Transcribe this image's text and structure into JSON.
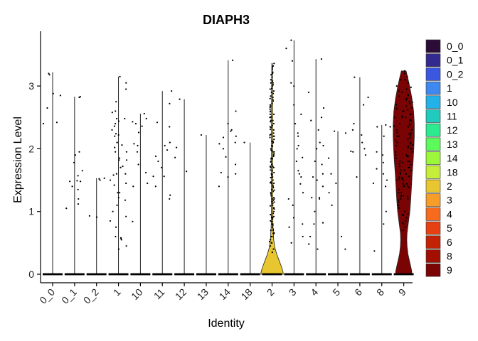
{
  "chart_data": {
    "type": "violin",
    "title": "DIAPH3",
    "xlabel": "Identity",
    "ylabel": "Expression Level",
    "ylim": [
      -0.15,
      3.8
    ],
    "yticks": [
      0,
      1,
      2,
      3
    ],
    "categories": [
      "0_0",
      "0_1",
      "0_2",
      "1",
      "10",
      "11",
      "12",
      "13",
      "14",
      "18",
      "2",
      "3",
      "4",
      "5",
      "6",
      "8",
      "9"
    ],
    "colors": [
      "#2A0C36",
      "#33298F",
      "#3B57E0",
      "#3F88F0",
      "#22B1E8",
      "#20CBBE",
      "#2CEB8E",
      "#5DFA5C",
      "#9CF73A",
      "#C6ED3A",
      "#E8C62F",
      "#F89D2A",
      "#F86B1E",
      "#E64113",
      "#C42205",
      "#A10F01",
      "#7A0403"
    ],
    "max_values": [
      3.22,
      2.83,
      1.53,
      3.15,
      2.56,
      2.92,
      2.79,
      2.22,
      3.41,
      2.1,
      3.36,
      3.73,
      3.43,
      2.28,
      3.14,
      2.38,
      3.24
    ],
    "nonzero_points": [
      [
        2.4,
        2.85,
        3.2,
        2.65,
        2.42,
        2.88,
        3.18
      ],
      [
        2.82,
        1.95,
        1.9,
        1.57,
        1.49,
        1.48,
        1.48,
        1.4,
        1.2,
        1.12,
        1.05,
        1.35,
        1.78,
        1.65,
        2.83
      ],
      [
        0.93,
        0.91,
        1.53,
        1.5,
        1.52
      ],
      [
        3.15,
        3.05,
        2.95,
        2.75,
        2.6,
        2.48,
        2.4,
        2.3,
        2.2,
        2.1,
        2.02,
        1.95,
        1.85,
        1.72,
        1.6,
        1.5,
        1.42,
        1.3,
        1.22,
        1.1,
        1.0,
        0.92,
        0.85,
        0.75,
        0.6,
        0.55,
        0.45,
        0.4,
        2.58,
        2.48,
        2.36,
        2.24,
        2.1,
        1.95,
        1.82,
        1.7,
        1.58,
        1.45,
        1.3,
        1.18,
        0.58,
        0.57,
        2.44,
        2.22,
        2.06,
        1.82,
        1.6
      ],
      [
        2.56,
        2.4,
        2.36,
        2.05,
        1.95,
        1.75,
        1.62,
        1.45,
        1.4,
        2.48,
        2.43,
        2.26,
        2.08,
        0.84
      ],
      [
        2.92,
        2.42,
        2.05,
        1.88,
        1.7,
        1.56,
        1.4,
        1.26,
        1.2,
        2.72,
        2.35,
        2.1,
        1.98,
        1.8,
        1.56
      ],
      [
        2.79,
        2.02,
        1.86,
        1.64
      ],
      [
        2.22,
        0.0
      ],
      [
        3.41,
        2.4,
        2.3,
        2.18,
        2.1,
        2.0,
        1.87,
        1.75,
        1.62,
        1.55,
        1.4,
        2.6,
        2.28,
        2.2,
        2.08,
        1.6
      ],
      [
        2.1,
        0.0
      ],
      [
        3.36,
        3.3,
        3.22,
        3.18,
        3.1,
        3.05,
        3.0,
        2.95,
        2.88,
        2.82,
        2.78,
        2.72,
        2.66,
        2.6,
        2.55,
        2.5,
        2.45,
        2.4,
        2.35,
        2.3,
        2.25,
        2.2,
        2.15,
        2.1,
        2.05,
        2.0,
        1.95,
        1.9,
        1.85,
        1.8,
        1.75,
        1.7,
        1.65,
        1.6,
        1.55,
        1.5,
        1.45,
        1.4,
        1.35,
        1.3,
        1.25,
        1.2,
        1.15,
        1.1,
        1.05,
        1.0,
        0.95,
        0.9,
        0.85,
        0.8,
        0.75,
        0.7,
        0.65,
        0.6,
        0.55,
        0.5,
        0.45,
        0.4,
        0.35,
        3.27,
        3.14,
        3.02,
        2.9,
        2.76,
        2.63,
        2.51,
        2.37,
        2.23,
        2.12,
        1.98,
        1.84,
        1.72,
        1.58,
        1.46,
        1.32,
        1.18,
        1.06,
        0.92,
        0.8,
        0.66,
        0.52,
        3.32,
        3.2,
        3.05,
        2.92,
        2.8,
        2.68,
        2.55,
        2.43,
        2.31,
        2.18,
        2.04,
        1.92,
        1.79,
        1.66,
        1.54,
        1.42,
        1.28,
        1.16,
        1.04,
        0.91,
        0.78,
        0.65,
        0.5,
        2.96,
        2.7,
        2.45,
        2.2,
        1.95,
        1.7,
        1.45,
        1.2,
        0.95,
        0.7,
        3.08,
        2.84,
        2.59,
        2.34,
        2.09,
        1.84,
        1.59,
        1.34,
        1.09,
        0.84,
        0.6,
        2.5,
        2.22,
        1.97,
        1.72,
        1.47,
        1.22,
        0.97,
        0.72,
        2.12,
        1.88,
        1.62,
        1.38,
        1.13,
        0.88
      ],
      [
        3.73,
        3.4,
        3.0,
        2.7,
        2.4,
        2.2,
        2.0,
        1.8,
        1.65,
        1.55,
        1.44,
        1.3,
        1.1,
        0.9,
        0.8,
        0.6,
        0.5,
        3.6,
        3.05,
        2.55,
        2.25,
        2.05,
        1.86,
        1.6,
        1.2,
        0.75
      ],
      [
        3.43,
        2.9,
        2.65,
        2.5,
        2.3,
        2.1,
        2.0,
        1.8,
        1.6,
        1.5,
        1.4,
        1.22,
        1.2,
        1.0,
        0.8,
        0.6,
        0.4,
        2.45,
        2.05,
        1.75,
        1.55,
        1.22,
        0.82,
        0.48
      ],
      [
        2.28,
        2.25,
        1.85,
        1.6,
        1.45,
        1.3,
        0.6,
        0.4,
        1.1
      ],
      [
        3.14,
        2.82,
        2.7,
        2.4,
        2.3,
        2.1,
        1.96,
        1.9,
        2.22,
        2.0,
        1.95,
        1.55
      ],
      [
        2.38,
        2.35,
        1.9,
        1.6,
        1.5,
        1.4,
        1.0,
        0.8,
        0.37,
        1.45,
        2.2,
        1.95,
        1.78,
        2.35,
        1.68
      ],
      [
        3.24,
        3.2,
        3.15,
        3.1,
        3.05,
        3.0,
        2.95,
        2.9,
        2.85,
        2.8,
        2.75,
        2.7,
        2.65,
        2.6,
        2.55,
        2.5,
        2.45,
        2.4,
        2.35,
        2.3,
        2.25,
        2.2,
        2.15,
        2.1,
        2.05,
        2.0,
        1.95,
        1.9,
        1.85,
        1.8,
        1.75,
        1.7,
        1.65,
        1.6,
        1.55,
        1.5,
        1.45,
        1.4,
        1.35,
        1.3,
        1.25,
        1.2,
        1.15,
        1.1,
        1.05,
        1.0,
        0.95,
        0.9,
        0.85,
        0.8,
        0.75,
        0.7,
        3.1,
        2.98,
        2.86,
        2.74,
        2.62,
        2.5,
        2.38,
        2.26,
        2.14,
        2.02,
        1.9,
        1.78,
        1.66,
        1.54,
        1.42,
        1.3,
        1.18,
        1.06,
        0.94,
        0.82,
        2.92,
        2.78,
        2.64,
        2.5,
        2.36,
        2.22,
        2.08,
        1.94,
        1.8,
        1.66,
        1.52,
        1.38,
        1.24,
        1.1,
        0.96,
        2.84,
        2.68,
        2.52,
        2.36,
        2.2,
        2.04,
        1.88,
        1.72,
        1.56,
        1.4,
        1.24,
        2.6,
        2.4,
        2.2,
        2.0,
        1.8,
        1.6,
        1.4,
        1.2,
        2.72,
        2.46,
        2.24,
        2.06,
        1.88,
        1.62,
        1.44,
        1.26,
        2.55,
        2.3,
        2.1,
        1.9,
        1.7,
        1.5,
        2.44,
        2.18,
        1.96,
        1.76,
        1.52
      ]
    ],
    "violin_shapes": {
      "2": [
        [
          0,
          0.48
        ],
        [
          0.05,
          0.46
        ],
        [
          0.12,
          0.4
        ],
        [
          0.22,
          0.3
        ],
        [
          0.32,
          0.2
        ],
        [
          0.42,
          0.12
        ],
        [
          0.55,
          0.07
        ],
        [
          0.75,
          0.04
        ],
        [
          1.0,
          0.03
        ],
        [
          1.5,
          0.025
        ],
        [
          2.0,
          0.025
        ],
        [
          2.5,
          0.025
        ],
        [
          3.0,
          0.02
        ],
        [
          3.36,
          0.01
        ]
      ],
      "9": [
        [
          0,
          0.35
        ],
        [
          0.05,
          0.34
        ],
        [
          0.12,
          0.3
        ],
        [
          0.22,
          0.24
        ],
        [
          0.32,
          0.18
        ],
        [
          0.45,
          0.14
        ],
        [
          0.55,
          0.13
        ],
        [
          0.65,
          0.14
        ],
        [
          0.8,
          0.19
        ],
        [
          1.0,
          0.26
        ],
        [
          1.2,
          0.3
        ],
        [
          1.4,
          0.33
        ],
        [
          1.6,
          0.36
        ],
        [
          1.8,
          0.4
        ],
        [
          2.0,
          0.43
        ],
        [
          2.2,
          0.45
        ],
        [
          2.4,
          0.45
        ],
        [
          2.6,
          0.42
        ],
        [
          2.8,
          0.35
        ],
        [
          3.0,
          0.25
        ],
        [
          3.15,
          0.16
        ],
        [
          3.24,
          0.1
        ]
      ]
    },
    "legend": {
      "position": "right",
      "entries": [
        "0_0",
        "0_1",
        "0_2",
        "1",
        "10",
        "11",
        "12",
        "13",
        "14",
        "18",
        "2",
        "3",
        "4",
        "5",
        "6",
        "8",
        "9"
      ]
    },
    "grid": false
  }
}
